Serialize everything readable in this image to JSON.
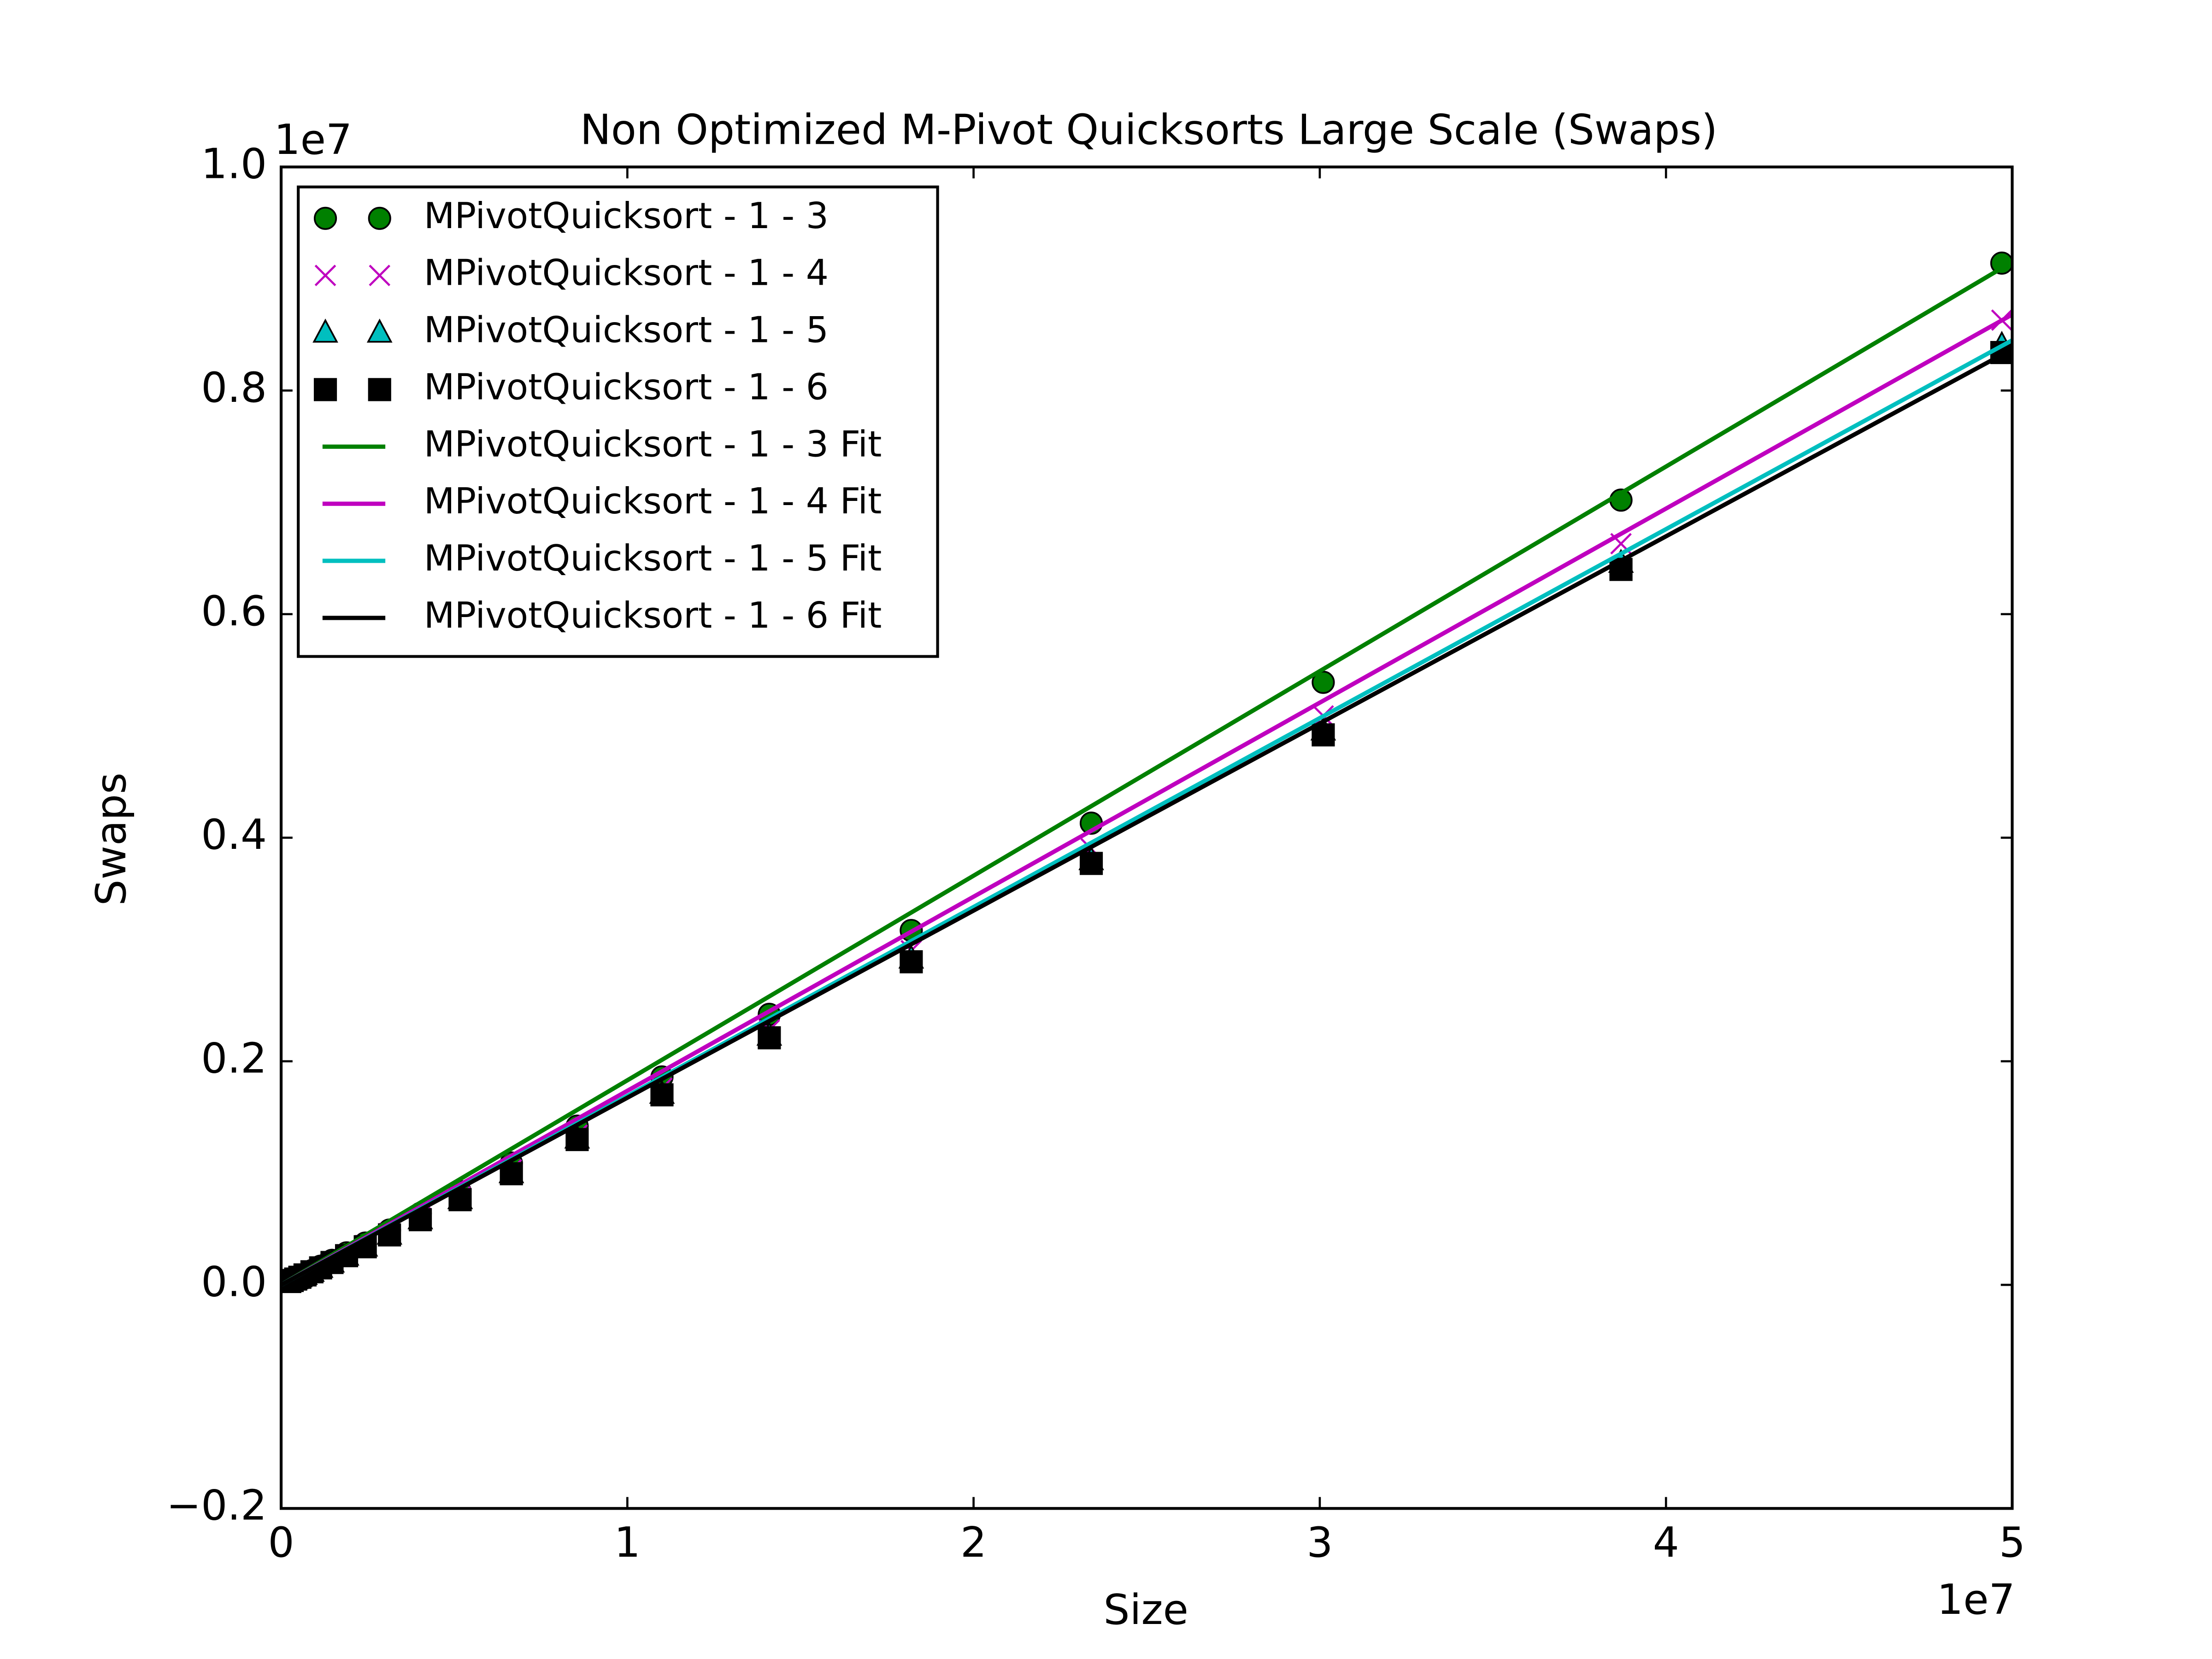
{
  "chart_data": {
    "type": "scatter",
    "title": "Non Optimized M-Pivot Quicksorts Large Scale (Swaps)",
    "xlabel": "Size",
    "ylabel": "Swaps",
    "x_offset_label": "1e7",
    "y_offset_label": "1e7",
    "xlim": [
      0,
      5
    ],
    "ylim": [
      -0.2,
      1.0
    ],
    "xticks": [
      0,
      1,
      2,
      3,
      4,
      5
    ],
    "yticks": [
      {
        "value": -0.2,
        "label": "−0.2"
      },
      {
        "value": 0,
        "label": "0.0"
      },
      0.2,
      0.4,
      0.6,
      0.8,
      {
        "value": 1.0,
        "label": "1.0"
      }
    ],
    "legend": "upper left",
    "x": [
      0.025,
      0.032,
      0.042,
      0.054,
      0.069,
      0.089,
      0.114,
      0.147,
      0.189,
      0.243,
      0.313,
      0.402,
      0.517,
      0.665,
      0.855,
      1.1,
      1.41,
      1.82,
      2.34,
      3.01,
      3.87,
      4.97
    ],
    "series": [
      {
        "name": "MPivotQuicksort - 1 - 3",
        "color": "#008000",
        "marker": "circle",
        "values": [
          0.0033,
          0.0043,
          0.0057,
          0.0075,
          0.0098,
          0.0128,
          0.0167,
          0.0219,
          0.0286,
          0.0374,
          0.049,
          0.0639,
          0.0835,
          0.109,
          0.142,
          0.186,
          0.242,
          0.317,
          0.413,
          0.539,
          0.702,
          0.914
        ]
      },
      {
        "name": "MPivotQuicksort - 1 - 4",
        "color": "#bf00bf",
        "marker": "x",
        "values": [
          0.0031,
          0.0041,
          0.0054,
          0.0071,
          0.0093,
          0.0121,
          0.0158,
          0.0207,
          0.027,
          0.0353,
          0.0463,
          0.0603,
          0.0788,
          0.103,
          0.134,
          0.176,
          0.228,
          0.299,
          0.39,
          0.509,
          0.663,
          0.863
        ]
      },
      {
        "name": "MPivotQuicksort - 1 - 5",
        "color": "#00bfbf",
        "marker": "triangle",
        "values": [
          0.003,
          0.004,
          0.0052,
          0.0069,
          0.009,
          0.0118,
          0.0154,
          0.0201,
          0.0263,
          0.0344,
          0.0451,
          0.0588,
          0.0768,
          0.1,
          0.131,
          0.171,
          0.223,
          0.292,
          0.38,
          0.496,
          0.646,
          0.841
        ]
      },
      {
        "name": "MPivotQuicksort - 1 - 6",
        "color": "#000000",
        "marker": "square",
        "values": [
          0.003,
          0.0039,
          0.0052,
          0.0068,
          0.0089,
          0.0117,
          0.0152,
          0.02,
          0.0261,
          0.0341,
          0.0447,
          0.0583,
          0.0762,
          0.0994,
          0.13,
          0.17,
          0.221,
          0.289,
          0.377,
          0.492,
          0.64,
          0.834
        ]
      },
      {
        "name": "MPivotQuicksort - 1 - 3 Fit",
        "color": "#008000",
        "x": [
          0,
          5
        ],
        "values": [
          0,
          0.915
        ]
      },
      {
        "name": "MPivotQuicksort - 1 - 4 Fit",
        "color": "#bf00bf",
        "x": [
          0,
          5
        ],
        "values": [
          0,
          0.868
        ]
      },
      {
        "name": "MPivotQuicksort - 1 - 5 Fit",
        "color": "#00bfbf",
        "x": [
          0,
          5
        ],
        "values": [
          0,
          0.845
        ]
      },
      {
        "name": "MPivotQuicksort - 1 - 6 Fit",
        "color": "#000000",
        "x": [
          0,
          5
        ],
        "values": [
          0,
          0.837
        ]
      }
    ]
  }
}
